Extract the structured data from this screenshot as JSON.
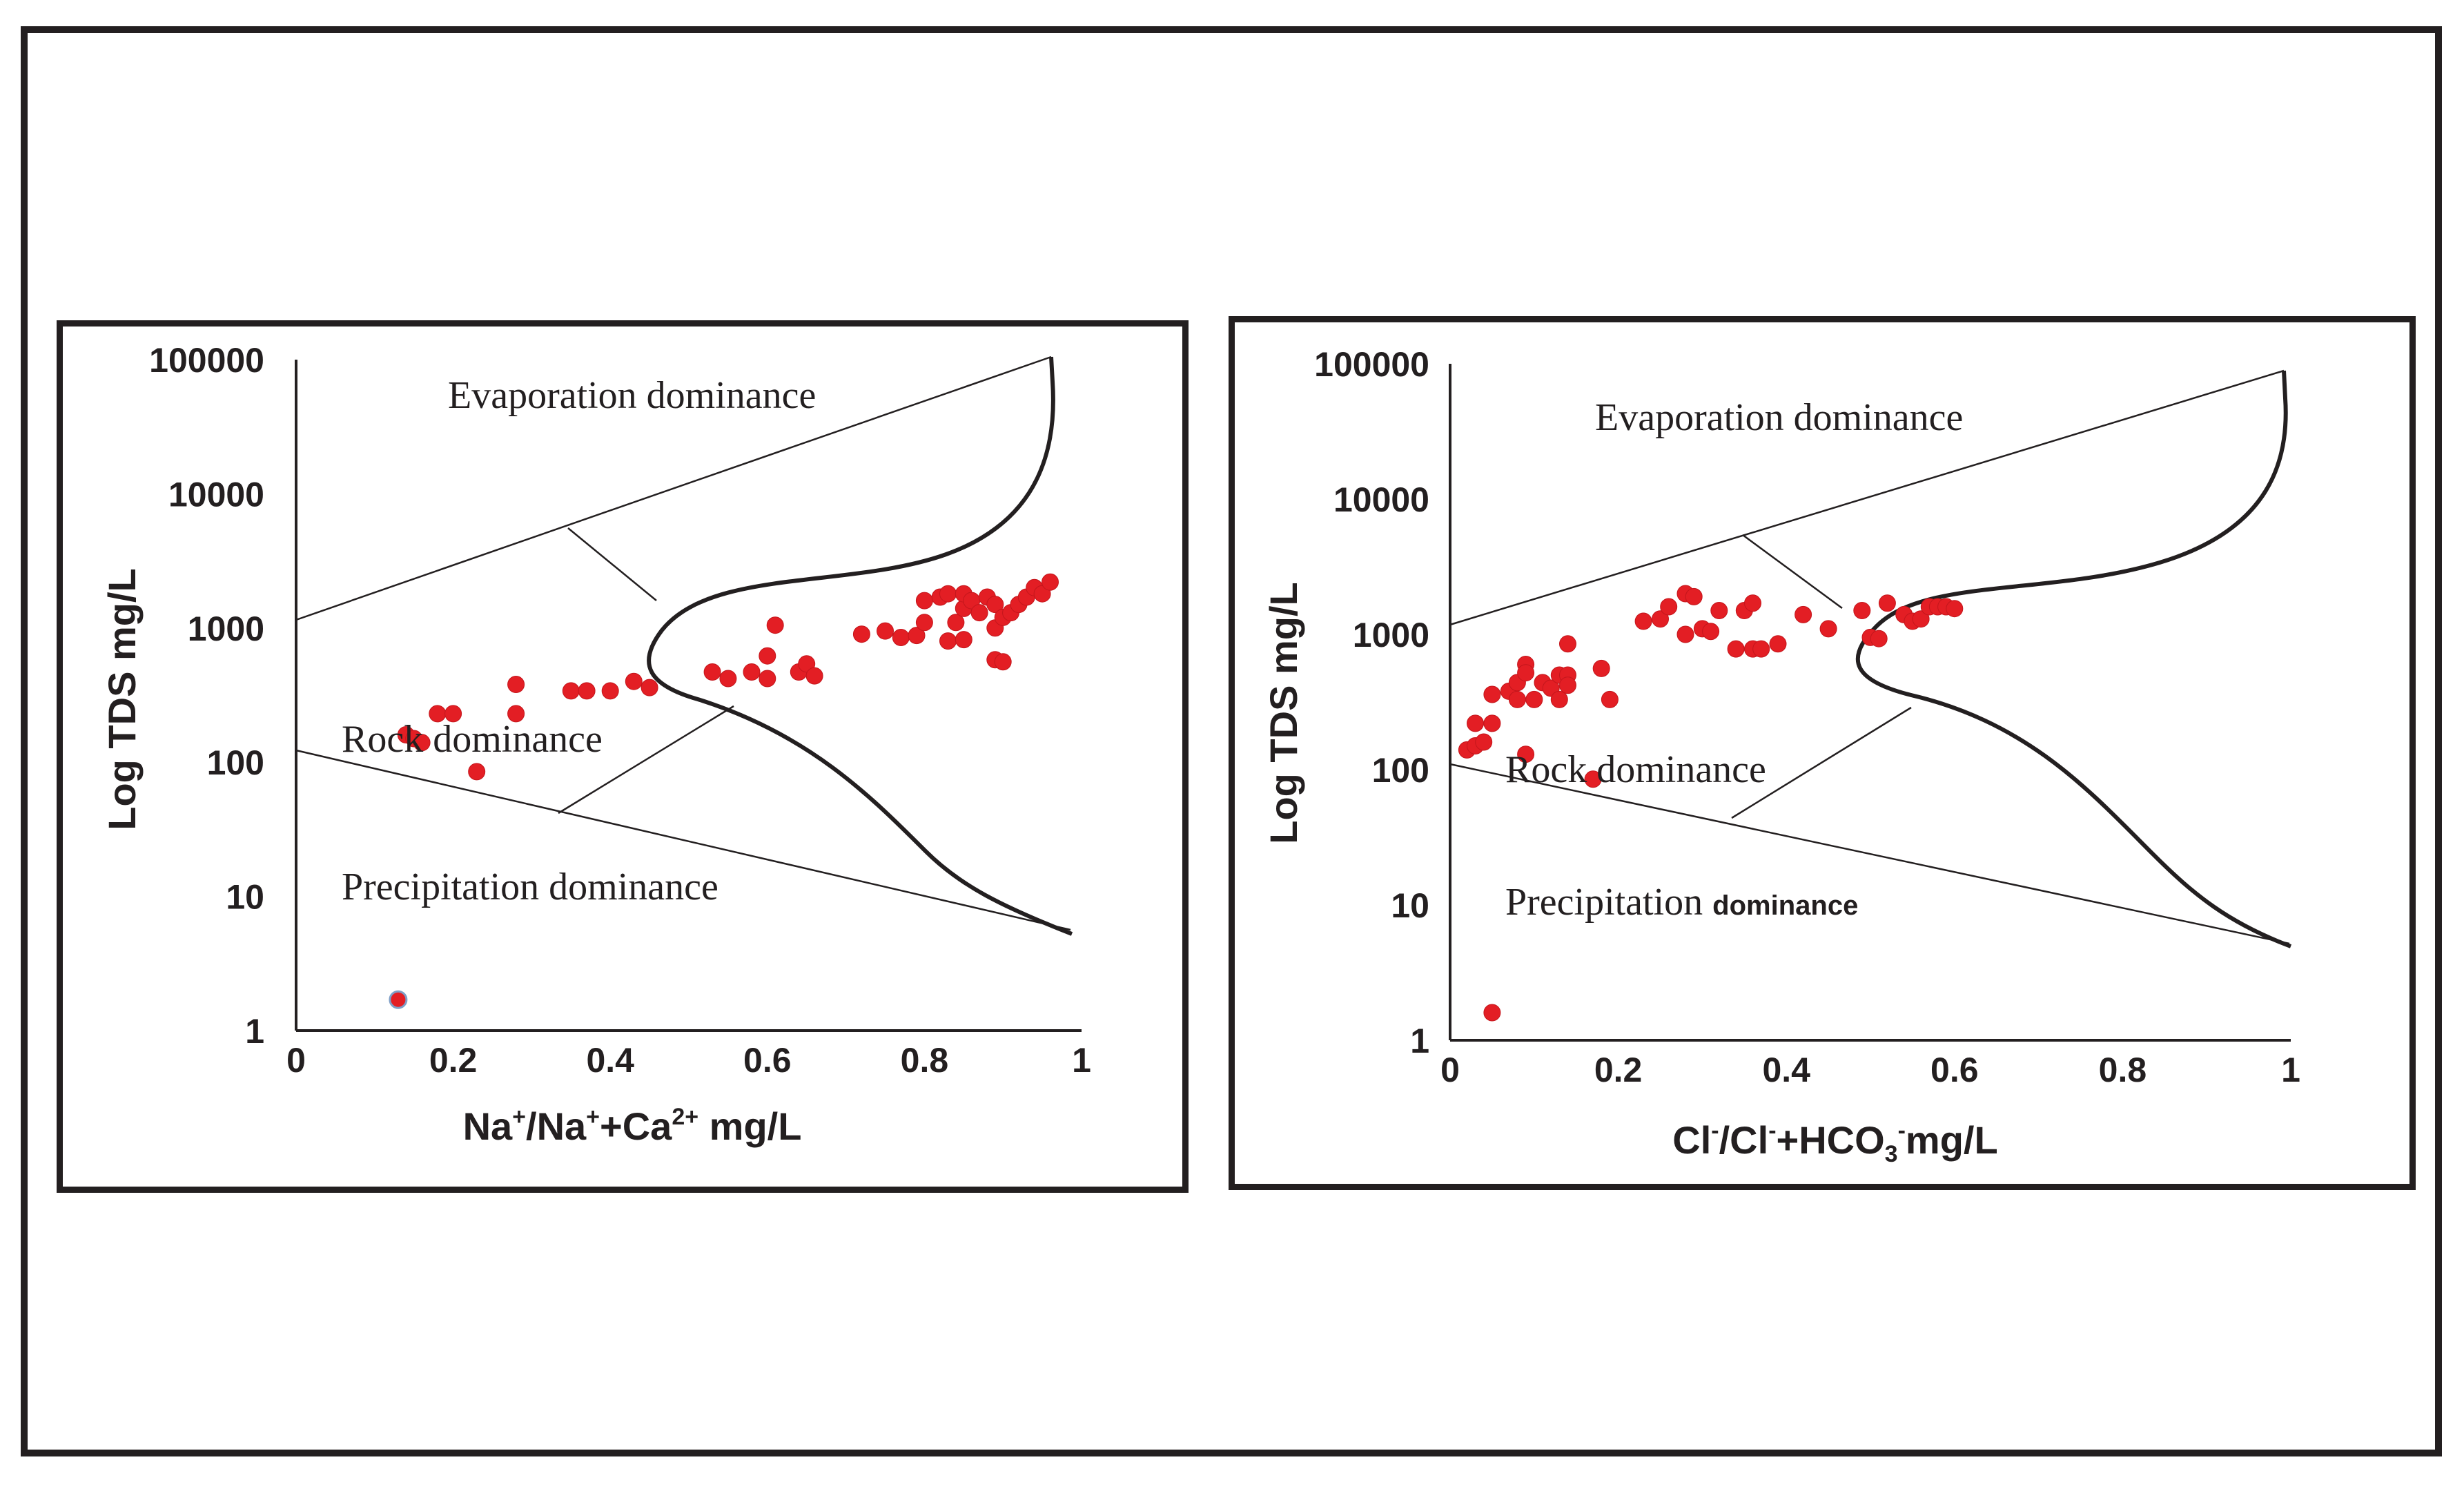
{
  "chart_data": [
    {
      "type": "scatter",
      "title": "",
      "xlabel_parts": [
        "Na",
        "+",
        "/Na",
        "+",
        "+Ca",
        "2+",
        " mg/L"
      ],
      "ylabel": "Log TDS mg/L",
      "xlim": [
        0,
        1
      ],
      "ylim_log": [
        1,
        100000
      ],
      "y_scale": "log",
      "x_ticks": [
        "0",
        "0.2",
        "0.4",
        "0.6",
        "0.8",
        "1"
      ],
      "y_ticks": [
        "1",
        "10",
        "100",
        "1000",
        "10000",
        "100000"
      ],
      "regions": {
        "evaporation": "Evaporation dominance",
        "rock": "Rock dominance",
        "precipitation": "Precipitation dominance"
      },
      "points": [
        [
          0.13,
          1.7
        ],
        [
          0.14,
          160
        ],
        [
          0.15,
          150
        ],
        [
          0.16,
          140
        ],
        [
          0.18,
          230
        ],
        [
          0.2,
          230
        ],
        [
          0.23,
          85
        ],
        [
          0.28,
          380
        ],
        [
          0.28,
          230
        ],
        [
          0.35,
          340
        ],
        [
          0.37,
          340
        ],
        [
          0.4,
          340
        ],
        [
          0.43,
          400
        ],
        [
          0.45,
          360
        ],
        [
          0.53,
          470
        ],
        [
          0.55,
          420
        ],
        [
          0.58,
          470
        ],
        [
          0.6,
          620
        ],
        [
          0.6,
          420
        ],
        [
          0.61,
          1050
        ],
        [
          0.64,
          470
        ],
        [
          0.65,
          540
        ],
        [
          0.66,
          440
        ],
        [
          0.72,
          900
        ],
        [
          0.75,
          950
        ],
        [
          0.77,
          850
        ],
        [
          0.79,
          880
        ],
        [
          0.8,
          1100
        ],
        [
          0.8,
          1600
        ],
        [
          0.82,
          1700
        ],
        [
          0.83,
          1800
        ],
        [
          0.83,
          800
        ],
        [
          0.84,
          1100
        ],
        [
          0.85,
          1400
        ],
        [
          0.85,
          1800
        ],
        [
          0.85,
          820
        ],
        [
          0.86,
          1600
        ],
        [
          0.87,
          1300
        ],
        [
          0.88,
          1700
        ],
        [
          0.89,
          1500
        ],
        [
          0.89,
          1000
        ],
        [
          0.89,
          580
        ],
        [
          0.9,
          1200
        ],
        [
          0.9,
          560
        ],
        [
          0.91,
          1300
        ],
        [
          0.92,
          1500
        ],
        [
          0.93,
          1700
        ],
        [
          0.94,
          2000
        ],
        [
          0.95,
          1800
        ],
        [
          0.96,
          2200
        ]
      ]
    },
    {
      "type": "scatter",
      "title": "",
      "xlabel_parts": [
        "Cl",
        "-",
        "/Cl",
        "-",
        "+HCO",
        "3",
        "-",
        "mg/L"
      ],
      "ylabel": "Log TDS mg/L",
      "xlim": [
        0,
        1
      ],
      "ylim_log": [
        1,
        100000
      ],
      "y_scale": "log",
      "x_ticks": [
        "0",
        "0.2",
        "0.4",
        "0.6",
        "0.8",
        "1"
      ],
      "y_ticks": [
        "1",
        "10",
        "100",
        "1000",
        "10000",
        "100000"
      ],
      "regions": {
        "evaporation": "Evaporation dominance",
        "rock": "Rock dominance",
        "precipitation": "Precipitation",
        "precipitation_suffix": "dominance"
      },
      "points": [
        [
          0.05,
          1.6
        ],
        [
          0.02,
          140
        ],
        [
          0.03,
          150
        ],
        [
          0.04,
          160
        ],
        [
          0.03,
          220
        ],
        [
          0.05,
          220
        ],
        [
          0.05,
          360
        ],
        [
          0.07,
          380
        ],
        [
          0.08,
          330
        ],
        [
          0.08,
          440
        ],
        [
          0.09,
          600
        ],
        [
          0.09,
          520
        ],
        [
          0.09,
          130
        ],
        [
          0.1,
          330
        ],
        [
          0.11,
          440
        ],
        [
          0.12,
          400
        ],
        [
          0.13,
          330
        ],
        [
          0.13,
          500
        ],
        [
          0.14,
          500
        ],
        [
          0.14,
          420
        ],
        [
          0.14,
          850
        ],
        [
          0.17,
          85
        ],
        [
          0.18,
          560
        ],
        [
          0.19,
          330
        ],
        [
          0.23,
          1250
        ],
        [
          0.25,
          1300
        ],
        [
          0.26,
          1600
        ],
        [
          0.28,
          1000
        ],
        [
          0.28,
          2000
        ],
        [
          0.29,
          1900
        ],
        [
          0.3,
          1100
        ],
        [
          0.31,
          1050
        ],
        [
          0.32,
          1500
        ],
        [
          0.34,
          780
        ],
        [
          0.35,
          1500
        ],
        [
          0.36,
          1700
        ],
        [
          0.36,
          780
        ],
        [
          0.37,
          780
        ],
        [
          0.39,
          850
        ],
        [
          0.42,
          1400
        ],
        [
          0.45,
          1100
        ],
        [
          0.49,
          1500
        ],
        [
          0.5,
          950
        ],
        [
          0.51,
          930
        ],
        [
          0.52,
          1700
        ],
        [
          0.54,
          1400
        ],
        [
          0.55,
          1250
        ],
        [
          0.56,
          1300
        ],
        [
          0.57,
          1600
        ],
        [
          0.58,
          1600
        ],
        [
          0.59,
          1600
        ],
        [
          0.6,
          1550
        ]
      ]
    }
  ]
}
